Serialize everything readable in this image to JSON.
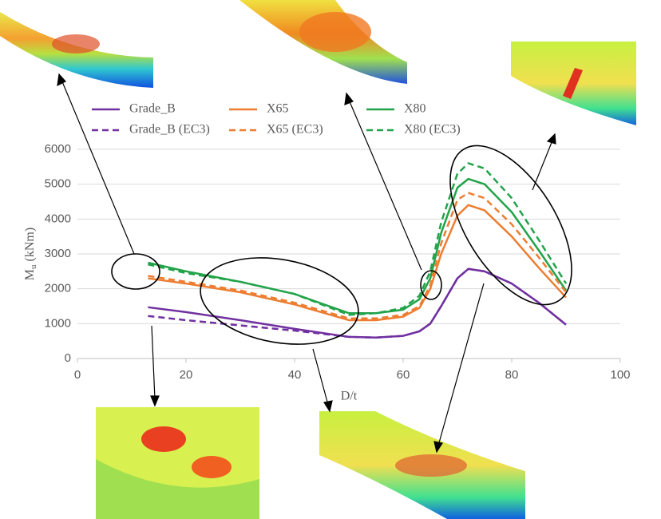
{
  "chart_data": {
    "type": "line",
    "xlabel": "D/t",
    "ylabel": [
      "M",
      "u",
      " (kNm)"
    ],
    "x": [
      13,
      20,
      30,
      40,
      50,
      55,
      60,
      63,
      65,
      67,
      70,
      72,
      75,
      80,
      85,
      90
    ],
    "series": [
      {
        "name": "Grade_B",
        "color": "#7030a0",
        "style": "solid",
        "values": [
          1470,
          1330,
          1100,
          850,
          620,
          600,
          650,
          780,
          1000,
          1500,
          2300,
          2570,
          2500,
          2150,
          1600,
          970
        ]
      },
      {
        "name": "X65",
        "color": "#ed7d31",
        "style": "solid",
        "values": [
          2300,
          2150,
          1900,
          1550,
          1100,
          1100,
          1200,
          1450,
          2000,
          3000,
          4100,
          4400,
          4250,
          3500,
          2600,
          1750
        ]
      },
      {
        "name": "X80",
        "color": "#22a34a",
        "style": "solid",
        "values": [
          2750,
          2500,
          2200,
          1850,
          1300,
          1300,
          1400,
          1700,
          2300,
          3600,
          4900,
          5150,
          5000,
          4200,
          3100,
          1950
        ]
      },
      {
        "name": "Grade_B (EC3)",
        "color": "#7030a0",
        "style": "dashed",
        "values": [
          1220,
          1100,
          950,
          800,
          620,
          600,
          650,
          780,
          1000,
          1500,
          2300,
          2570,
          2500,
          2150,
          1600,
          970
        ]
      },
      {
        "name": "X65 (EC3)",
        "color": "#ed7d31",
        "style": "dashed",
        "values": [
          2370,
          2200,
          1950,
          1600,
          1150,
          1150,
          1250,
          1500,
          2100,
          3300,
          4550,
          4750,
          4600,
          3850,
          2900,
          1900
        ]
      },
      {
        "name": "X80 (EC3)",
        "color": "#22a34a",
        "style": "dashed",
        "values": [
          2700,
          2450,
          2200,
          1850,
          1250,
          1300,
          1450,
          1800,
          2500,
          3900,
          5300,
          5600,
          5450,
          4600,
          3400,
          2150
        ]
      }
    ],
    "xlim": [
      0,
      100
    ],
    "xticks": [
      0,
      20,
      40,
      60,
      80,
      100
    ],
    "ylim": [
      0,
      6000
    ],
    "yticks": [
      0,
      1000,
      2000,
      3000,
      4000,
      5000,
      6000
    ],
    "grid": true
  }
}
